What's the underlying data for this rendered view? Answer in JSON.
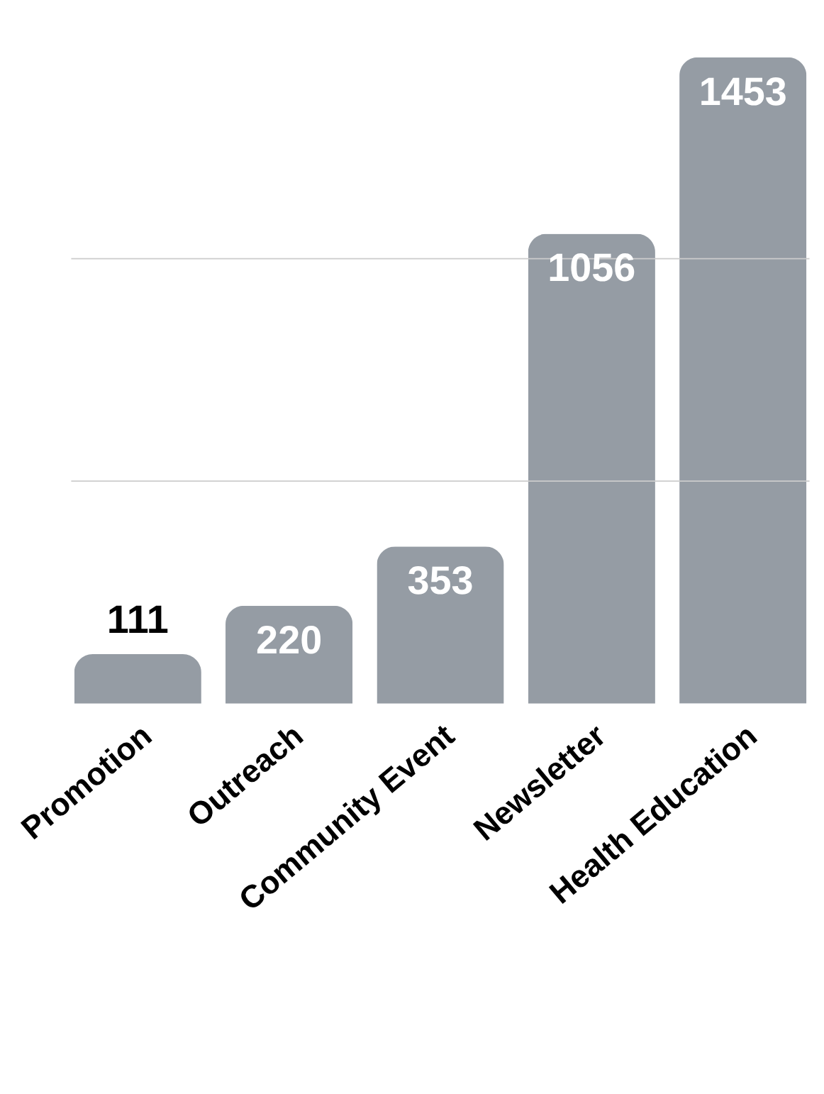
{
  "chart_data": {
    "type": "bar",
    "categories": [
      "Promotion",
      "Outreach",
      "Community Event",
      "Newsletter",
      "Health Education"
    ],
    "values": [
      111,
      220,
      353,
      1056,
      1453
    ],
    "color": "#959ca4",
    "data_labels": true,
    "ref_lines": [
      {
        "axis": "y",
        "value": 500,
        "color": "#cccccc"
      },
      {
        "axis": "y",
        "value": 1000,
        "color": "#cccccc"
      }
    ],
    "tick_labels": "x"
  }
}
